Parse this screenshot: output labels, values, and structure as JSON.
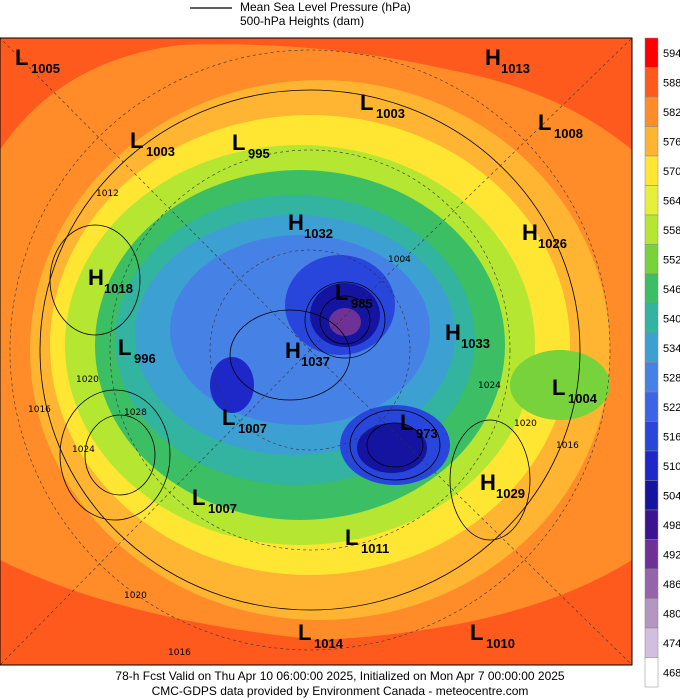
{
  "legend": {
    "pressure": "Mean Sea Level Pressure (hPa)",
    "heights": "500-hPa Heights (dam)"
  },
  "centers": [
    {
      "type": "L",
      "value": "1005"
    },
    {
      "type": "H",
      "value": "1013"
    },
    {
      "type": "L",
      "value": "1003"
    },
    {
      "type": "L",
      "value": "1008"
    },
    {
      "type": "L",
      "value": "1003"
    },
    {
      "type": "L",
      "value": "995"
    },
    {
      "type": "H",
      "value": "1032"
    },
    {
      "type": "H",
      "value": "1026"
    },
    {
      "type": "H",
      "value": "1018"
    },
    {
      "type": "L",
      "value": "985"
    },
    {
      "type": "H",
      "value": "1033"
    },
    {
      "type": "L",
      "value": "996"
    },
    {
      "type": "H",
      "value": "1037"
    },
    {
      "type": "L",
      "value": "1004"
    },
    {
      "type": "L",
      "value": "1007"
    },
    {
      "type": "L",
      "value": "973"
    },
    {
      "type": "H",
      "value": "1029"
    },
    {
      "type": "L",
      "value": "1007"
    },
    {
      "type": "L",
      "value": "1011"
    },
    {
      "type": "L",
      "value": "1014"
    },
    {
      "type": "L",
      "value": "1010"
    }
  ],
  "contour_labels": [
    "1012",
    "1020",
    "1016",
    "1028",
    "1024",
    "1004",
    "1024",
    "1020",
    "1016",
    "1020",
    "1016"
  ],
  "colorbar": {
    "ticks": [
      594,
      588,
      582,
      576,
      570,
      564,
      558,
      552,
      546,
      540,
      534,
      528,
      522,
      516,
      510,
      504,
      498,
      492,
      486,
      480,
      474,
      468
    ],
    "colors": [
      "#ff0000",
      "#ff5a1e",
      "#ff8c28",
      "#ffb432",
      "#ffe632",
      "#e6f03c",
      "#b4e632",
      "#78d23c",
      "#3cbe64",
      "#32b4a0",
      "#3ca0d2",
      "#4682e6",
      "#3c64e6",
      "#2846dc",
      "#1e28c8",
      "#1414a0",
      "#3c1490",
      "#6e3296",
      "#9664aa",
      "#b496c3",
      "#d2bee1",
      "#ffffff"
    ]
  },
  "footer": {
    "valid": "78-h Fcst Valid on Thu Apr 10 06:00:00 2025, Initialized on Mon Apr  7 00:00:00 2025",
    "credit": "CMC-GDPS data provided by Environment Canada - meteocentre.com"
  }
}
